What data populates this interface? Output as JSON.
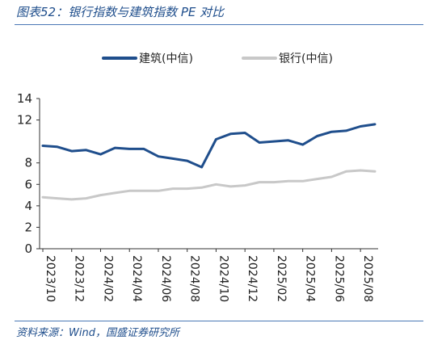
{
  "figure": {
    "title": "图表52：银行指数与建筑指数 PE 对比",
    "source": "资料来源：Wind，国盛证券研究所"
  },
  "chart_data": {
    "type": "line",
    "legend_placement": "top",
    "grid": false,
    "ylim": [
      0,
      14
    ],
    "yticks": [
      "0",
      "2",
      "4",
      "6",
      "8",
      "12",
      "14"
    ],
    "x_tick_labels": [
      "2023/10",
      "2023/12",
      "2024/02",
      "2024/04",
      "2024/06",
      "2024/08",
      "2024/10",
      "2024/12",
      "2025/02",
      "2025/04",
      "2025/06",
      "2025/08"
    ],
    "x": [
      "2023/10",
      "2023/11",
      "2023/12",
      "2024/01",
      "2024/02",
      "2024/03",
      "2024/04",
      "2024/05",
      "2024/06",
      "2024/07",
      "2024/08",
      "2024/09",
      "2024/10",
      "2024/11",
      "2024/12",
      "2025/01",
      "2025/02",
      "2025/03",
      "2025/04",
      "2025/05",
      "2025/06",
      "2025/07",
      "2025/08",
      "2025/09"
    ],
    "series": [
      {
        "name": "建筑(中信)",
        "color": "#1f4e8c",
        "values": [
          9.6,
          9.5,
          9.1,
          9.2,
          8.8,
          9.4,
          9.3,
          9.3,
          8.6,
          8.4,
          8.2,
          7.6,
          10.2,
          10.7,
          10.8,
          9.9,
          10.0,
          10.1,
          9.7,
          10.5,
          10.9,
          11.0,
          11.4,
          11.6
        ]
      },
      {
        "name": "银行(中信)",
        "color": "#c8c8c8",
        "values": [
          4.8,
          4.7,
          4.6,
          4.7,
          5.0,
          5.2,
          5.4,
          5.4,
          5.4,
          5.6,
          5.6,
          5.7,
          6.0,
          5.8,
          5.9,
          6.2,
          6.2,
          6.3,
          6.3,
          6.5,
          6.7,
          7.2,
          7.3,
          7.2
        ]
      }
    ]
  }
}
